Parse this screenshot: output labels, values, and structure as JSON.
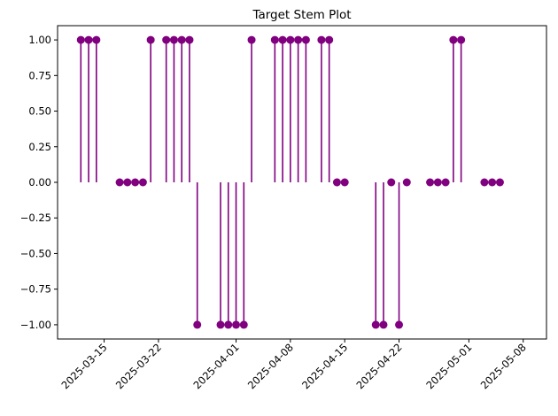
{
  "chart_data": {
    "type": "stem",
    "title": "Target Stem Plot",
    "xlabel": "",
    "ylabel": "",
    "color": "#800080",
    "x_start": "2025-03-12",
    "x_step_days": 1,
    "values": [
      1,
      1,
      1,
      null,
      null,
      0,
      0,
      0,
      0,
      1,
      null,
      1,
      1,
      1,
      1,
      -1,
      null,
      null,
      -1,
      -1,
      -1,
      -1,
      1,
      null,
      null,
      1,
      1,
      1,
      1,
      1,
      null,
      1,
      1,
      0,
      0,
      null,
      null,
      null,
      -1,
      -1,
      0,
      -1,
      0,
      null,
      null,
      0,
      0,
      0,
      1,
      1,
      null,
      null,
      0,
      0,
      0
    ],
    "xlim": [
      "2025-03-09",
      "2025-05-11"
    ],
    "ylim": [
      -1.1,
      1.1
    ],
    "x_ticks": [
      "2025-03-15",
      "2025-03-22",
      "2025-04-01",
      "2025-04-08",
      "2025-04-15",
      "2025-04-22",
      "2025-05-01",
      "2025-05-08"
    ],
    "y_ticks": [
      1.0,
      0.75,
      0.5,
      0.25,
      0.0,
      -0.25,
      -0.5,
      -0.75,
      -1.0
    ],
    "y_tick_labels": [
      "1.00",
      "0.75",
      "0.50",
      "0.25",
      "0.00",
      "−0.25",
      "−0.50",
      "−0.75",
      "−1.00"
    ],
    "grid": false,
    "legend": "none"
  }
}
